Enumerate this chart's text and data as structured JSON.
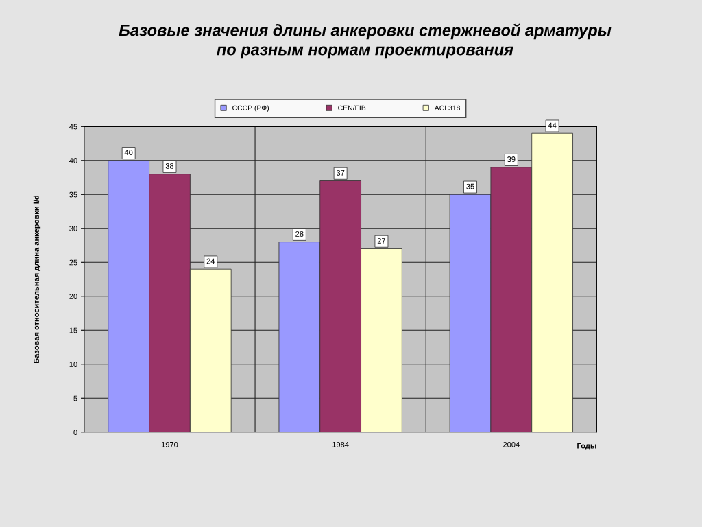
{
  "chart_data": {
    "type": "bar",
    "title": "Базовые значения длины анкеровки стержневой арматуры\nпо разным нормам проектирования",
    "categories": [
      "1970",
      "1984",
      "2004"
    ],
    "series": [
      {
        "name": "СССР (РФ)",
        "color": "#9999ff",
        "values": [
          40,
          28,
          35
        ]
      },
      {
        "name": "CEN/FIB",
        "color": "#993366",
        "values": [
          38,
          37,
          39
        ]
      },
      {
        "name": "ACI 318",
        "color": "#ffffcc",
        "values": [
          24,
          27,
          44
        ]
      }
    ],
    "xlabel": "Годы",
    "ylabel": "Базовая относительная длина анкеровки l/d",
    "ylim": [
      0,
      45
    ],
    "yticks": [
      0,
      5,
      10,
      15,
      20,
      25,
      30,
      35,
      40,
      45
    ],
    "grid": "y",
    "legend": "top",
    "data_labels": true
  }
}
